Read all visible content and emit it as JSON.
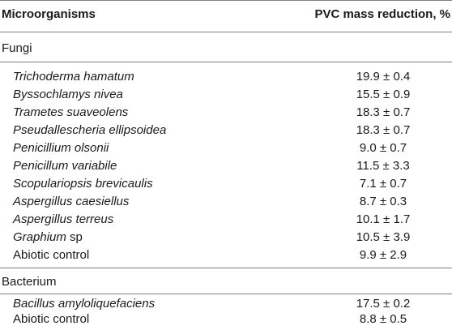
{
  "header": {
    "col1": "Microorganisms",
    "col2": "PVC mass reduction, %"
  },
  "sections": [
    {
      "label": "Fungi",
      "rows": [
        {
          "name": "Trichoderma hamatum",
          "suffix": "",
          "italic": true,
          "value": "19.9 ± 0.4"
        },
        {
          "name": "Byssochlamys nivea",
          "suffix": "",
          "italic": true,
          "value": "15.5 ± 0.9"
        },
        {
          "name": "Trametes suaveolens",
          "suffix": "",
          "italic": true,
          "value": "18.3 ± 0.7"
        },
        {
          "name": "Pseudallescheria ellipsoidea",
          "suffix": "",
          "italic": true,
          "value": "18.3 ± 0.7"
        },
        {
          "name": "Penicillium olsonii",
          "suffix": "",
          "italic": true,
          "value": "9.0 ± 0.7"
        },
        {
          "name": "Penicillum variabile",
          "suffix": "",
          "italic": true,
          "value": "11.5 ± 3.3"
        },
        {
          "name": "Scopulariopsis brevicaulis",
          "suffix": "",
          "italic": true,
          "value": "7.1 ± 0.7"
        },
        {
          "name": "Aspergillus caesiellus",
          "suffix": "",
          "italic": true,
          "value": "8.7 ± 0.3"
        },
        {
          "name": "Aspergillus terreus",
          "suffix": "",
          "italic": true,
          "value": "10.1 ± 1.7"
        },
        {
          "name": "Graphium",
          "suffix": " sp",
          "italic": true,
          "value": "10.5 ± 3.9"
        },
        {
          "name": "Abiotic control",
          "suffix": "",
          "italic": false,
          "value": "9.9 ± 2.9"
        }
      ]
    },
    {
      "label": "Bacterium",
      "rows": [
        {
          "name": "Bacillus amyloliquefaciens",
          "suffix": "",
          "italic": true,
          "value": "17.5 ± 0.2"
        },
        {
          "name": "Abiotic control",
          "suffix": "",
          "italic": false,
          "value": "8.8 ± 0.5"
        }
      ]
    }
  ]
}
